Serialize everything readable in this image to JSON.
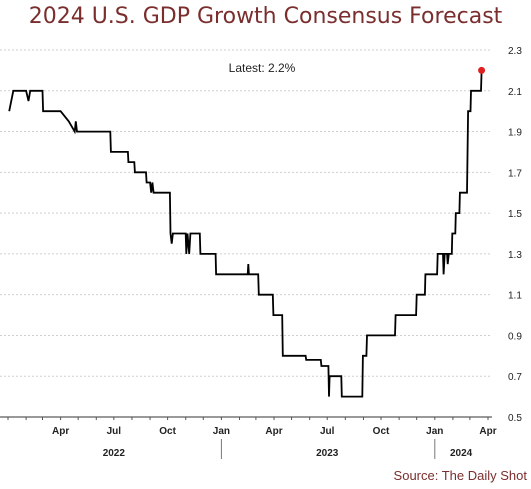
{
  "chart_data": {
    "type": "line",
    "title": "2024 U.S. GDP Growth Consensus Forecast",
    "source": "Source: The Daily Shot",
    "annotation": "Latest:  2.2%",
    "y_axis": {
      "ticks": [
        "2.3",
        "2.1",
        "1.9",
        "1.7",
        "1.5",
        "1.3",
        "1.1",
        "0.9",
        "0.7",
        "0.5"
      ],
      "ylim": [
        0.5,
        2.3
      ],
      "position": "right"
    },
    "x_axis": {
      "month_labels": [
        "Apr",
        "Jul",
        "Oct",
        "Jan",
        "Apr",
        "Jul",
        "Oct",
        "Jan",
        "Apr"
      ],
      "year_labels": [
        "2022",
        "2023",
        "2024"
      ]
    },
    "grid": "horizontal dashed",
    "line_color": "#000000",
    "marker_color": "#e02020",
    "series": [
      {
        "points": [
          [
            "2022-01-03",
            2.0
          ],
          [
            "2022-01-10",
            2.1
          ],
          [
            "2022-02-01",
            2.1
          ],
          [
            "2022-02-05",
            2.05
          ],
          [
            "2022-02-08",
            2.1
          ],
          [
            "2022-03-01",
            2.1
          ],
          [
            "2022-03-02",
            2.0
          ],
          [
            "2022-04-01",
            2.0
          ],
          [
            "2022-04-15",
            1.95
          ],
          [
            "2022-04-25",
            1.9
          ],
          [
            "2022-04-27",
            1.95
          ],
          [
            "2022-04-29",
            1.9
          ],
          [
            "2022-06-25",
            1.9
          ],
          [
            "2022-06-26",
            1.8
          ],
          [
            "2022-07-25",
            1.8
          ],
          [
            "2022-07-26",
            1.75
          ],
          [
            "2022-08-05",
            1.75
          ],
          [
            "2022-08-06",
            1.7
          ],
          [
            "2022-08-25",
            1.7
          ],
          [
            "2022-08-26",
            1.65
          ],
          [
            "2022-09-01",
            1.65
          ],
          [
            "2022-09-03",
            1.6
          ],
          [
            "2022-09-05",
            1.65
          ],
          [
            "2022-09-07",
            1.6
          ],
          [
            "2022-10-05",
            1.6
          ],
          [
            "2022-10-06",
            1.4
          ],
          [
            "2022-10-08",
            1.35
          ],
          [
            "2022-10-10",
            1.4
          ],
          [
            "2022-11-01",
            1.4
          ],
          [
            "2022-11-02",
            1.3
          ],
          [
            "2022-11-04",
            1.4
          ],
          [
            "2022-11-07",
            1.3
          ],
          [
            "2022-11-09",
            1.4
          ],
          [
            "2022-11-25",
            1.4
          ],
          [
            "2022-11-26",
            1.3
          ],
          [
            "2022-12-22",
            1.3
          ],
          [
            "2022-12-23",
            1.2
          ],
          [
            "2023-02-15",
            1.2
          ],
          [
            "2023-02-16",
            1.25
          ],
          [
            "2023-02-17",
            1.2
          ],
          [
            "2023-03-05",
            1.2
          ],
          [
            "2023-03-06",
            1.1
          ],
          [
            "2023-03-30",
            1.1
          ],
          [
            "2023-03-31",
            1.0
          ],
          [
            "2023-04-15",
            1.0
          ],
          [
            "2023-04-16",
            0.8
          ],
          [
            "2023-05-25",
            0.8
          ],
          [
            "2023-05-26",
            0.78
          ],
          [
            "2023-06-20",
            0.78
          ],
          [
            "2023-06-21",
            0.75
          ],
          [
            "2023-07-03",
            0.75
          ],
          [
            "2023-07-04",
            0.6
          ],
          [
            "2023-07-05",
            0.7
          ],
          [
            "2023-07-25",
            0.7
          ],
          [
            "2023-07-26",
            0.6
          ],
          [
            "2023-08-30",
            0.6
          ],
          [
            "2023-08-31",
            0.8
          ],
          [
            "2023-09-06",
            0.8
          ],
          [
            "2023-09-07",
            0.9
          ],
          [
            "2023-10-25",
            0.9
          ],
          [
            "2023-10-26",
            1.0
          ],
          [
            "2023-11-30",
            1.0
          ],
          [
            "2023-12-01",
            1.1
          ],
          [
            "2023-12-15",
            1.1
          ],
          [
            "2023-12-16",
            1.2
          ],
          [
            "2024-01-05",
            1.2
          ],
          [
            "2024-01-06",
            1.3
          ],
          [
            "2024-01-15",
            1.3
          ],
          [
            "2024-01-16",
            1.2
          ],
          [
            "2024-01-18",
            1.3
          ],
          [
            "2024-01-22",
            1.3
          ],
          [
            "2024-01-23",
            1.25
          ],
          [
            "2024-01-25",
            1.3
          ],
          [
            "2024-01-30",
            1.3
          ],
          [
            "2024-01-31",
            1.4
          ],
          [
            "2024-02-05",
            1.4
          ],
          [
            "2024-02-06",
            1.5
          ],
          [
            "2024-02-12",
            1.5
          ],
          [
            "2024-02-13",
            1.6
          ],
          [
            "2024-02-25",
            1.6
          ],
          [
            "2024-02-27",
            2.0
          ],
          [
            "2024-03-02",
            2.0
          ],
          [
            "2024-03-03",
            2.1
          ],
          [
            "2024-03-20",
            2.1
          ],
          [
            "2024-03-21",
            2.2
          ]
        ],
        "latest": [
          "2024-03-21",
          2.2
        ]
      }
    ]
  }
}
